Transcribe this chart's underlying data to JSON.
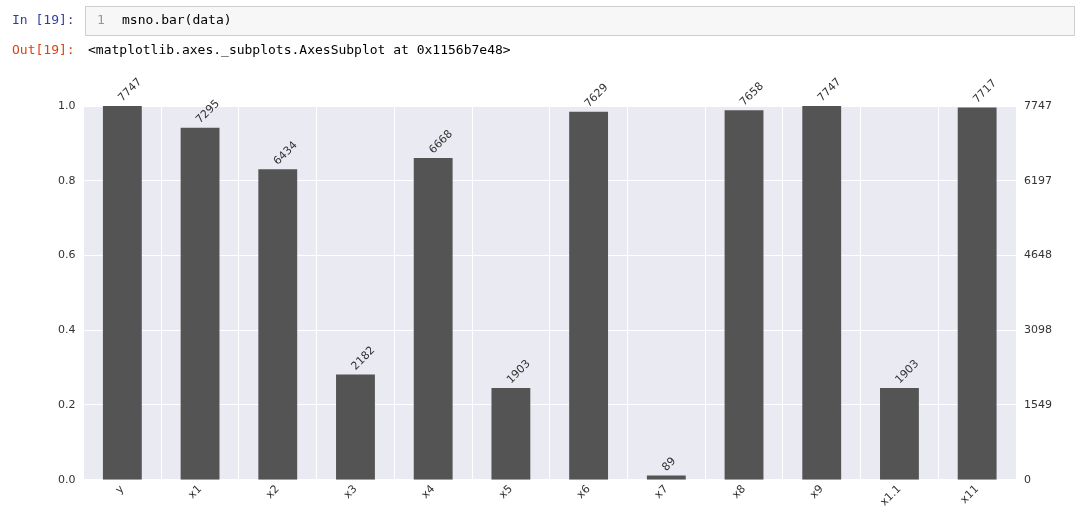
{
  "chart_data": {
    "type": "bar",
    "categories": [
      "y",
      "x1",
      "x2",
      "x3",
      "x4",
      "x5",
      "x6",
      "x7",
      "x8",
      "x9",
      "x1.1",
      "x11"
    ],
    "series": [
      {
        "color": "#545454",
        "axis": "y2",
        "values": [
          7747,
          7295,
          6434,
          2182,
          6668,
          1903,
          7629,
          89,
          7658,
          7747,
          1903,
          7717
        ]
      }
    ],
    "data_labels": true,
    "ylim": [
      0,
      1
    ],
    "yticks": [
      {
        "value": 0,
        "label": "0.0"
      },
      {
        "value": 0.2,
        "label": "0.2"
      },
      {
        "value": 0.4,
        "label": "0.4"
      },
      {
        "value": 0.6,
        "label": "0.6"
      },
      {
        "value": 0.8,
        "label": "0.8"
      },
      {
        "value": 1,
        "label": "1.0"
      }
    ],
    "y2lim": [
      0,
      7747
    ],
    "y2ticks": [
      0,
      1549,
      3098,
      4648,
      6197,
      7747
    ],
    "grid": true,
    "annotations": [
      "In [19]:",
      "1",
      "msno.bar(data)",
      "Out[19]:",
      "<matplotlib.axes._subplots.AxesSubplot at 0x1156b7e48>"
    ]
  }
}
